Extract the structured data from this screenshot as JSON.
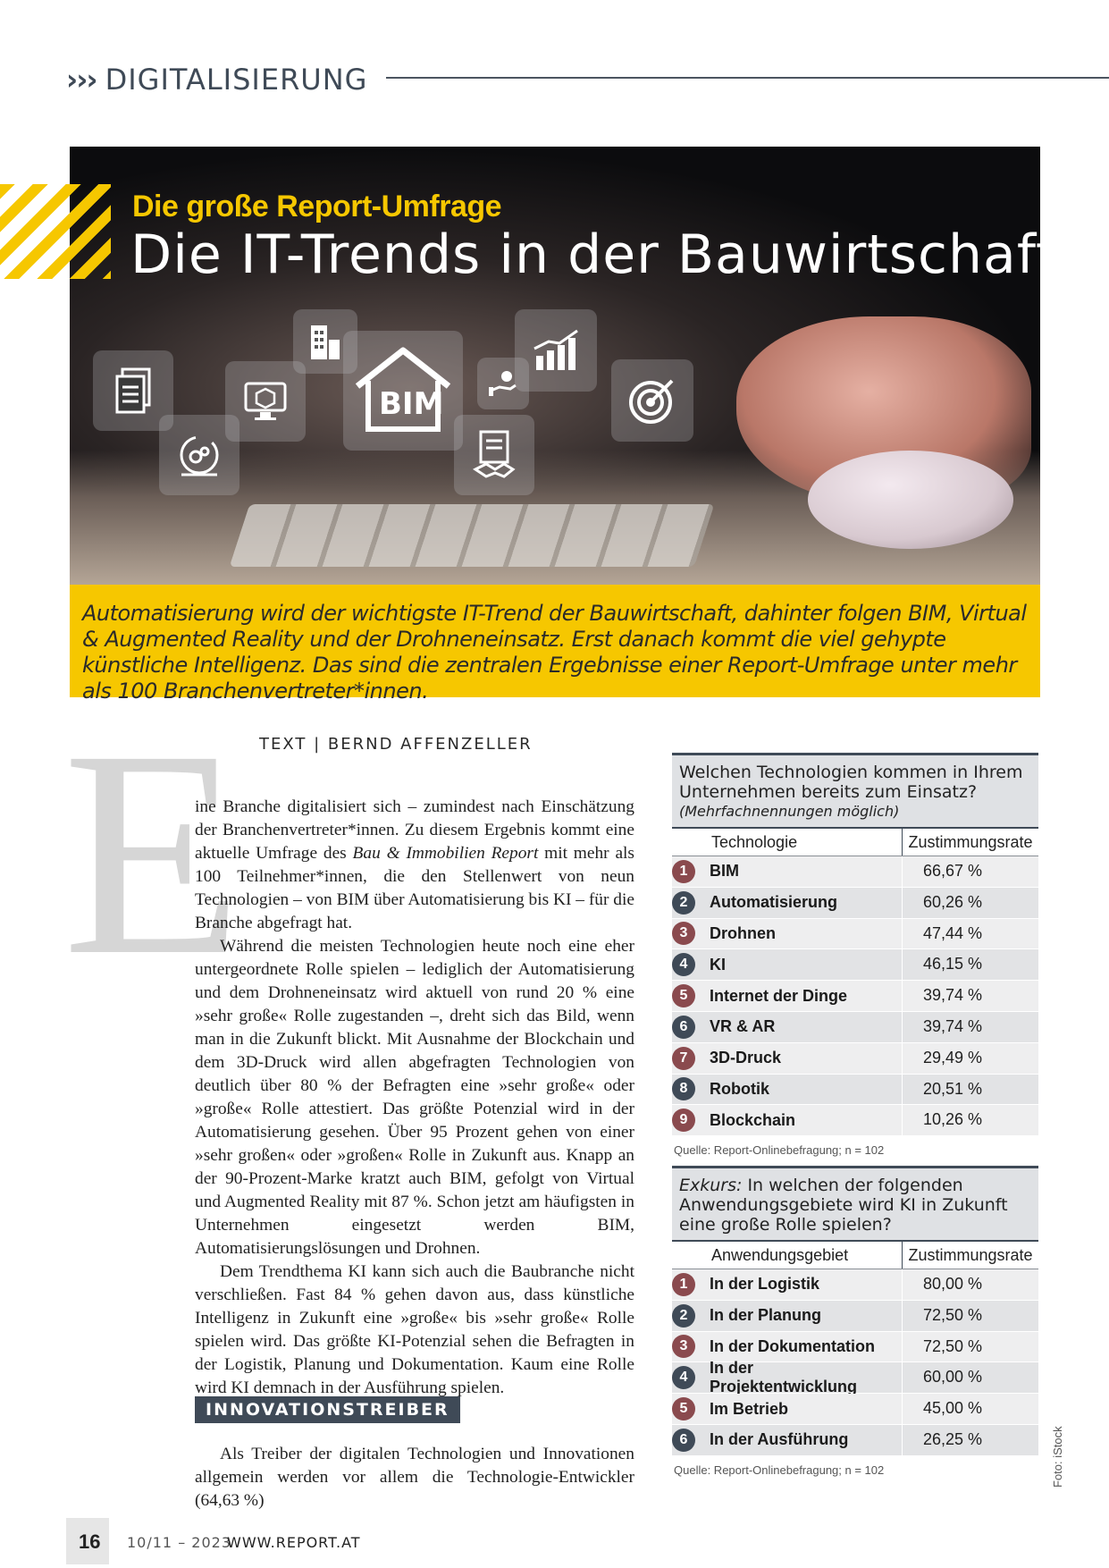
{
  "header": {
    "chevrons": "›››",
    "section": "DIGITALISIERUNG"
  },
  "hero": {
    "kicker": "Die große Report-Umfrage",
    "title": "Die IT-Trends in der Bauwirtschaft",
    "bim_label": "BIM",
    "kicker_color": "#f6c700"
  },
  "lead": "Automatisierung wird der wichtigste IT-Trend der Bauwirtschaft, dahinter folgen BIM, Virtual & Augmented Reality und der Drohneneinsatz. Erst danach kommt die viel gehypte künstliche Intelligenz. Das sind die zentralen Ergebnisse einer Report-Umfrage unter mehr als 100 Branchenvertreter*innen.",
  "article": {
    "dropcap": "E",
    "byline": "TEXT | BERND AFFENZELLER",
    "p1_start": "ine Branche digitalisiert sich – zumindest nach Einschätzung der Branchenvertreter*innen. Zu diesem Ergebnis kommt eine aktuelle Umfrage des ",
    "p1_italic": "Bau & Immobilien Report",
    "p1_end": " mit mehr als 100 Teilnehmer*innen, die den Stellenwert von neun Technologien – von BIM über Automatisierung bis KI – für die Branche abgefragt hat.",
    "p2": "Während die meisten Technologien heute noch eine eher untergeordnete Rolle spielen – lediglich der Automatisierung und dem Drohneneinsatz wird aktuell von rund 20 % eine »sehr große« Rolle zugestanden –, dreht sich das Bild, wenn man in die Zukunft blickt. Mit Ausnahme der Blockchain und dem 3D-Druck wird allen abgefragten Technologien von deutlich über 80 % der Befragten eine »sehr große« oder »große« Rolle attestiert. Das größte Potenzial wird in der Automatisierung gesehen. Über 95 Prozent gehen von einer »sehr großen« oder »großen« Rolle in Zukunft aus. Knapp an der 90-Prozent-Marke kratzt auch BIM, gefolgt von Virtual und Augmented Reality mit 87 %. Schon jetzt am häufigsten in Unternehmen eingesetzt werden BIM, Automatisierungslösungen und Drohnen.",
    "p3": "Dem Trendthema KI kann sich auch die Baubranche nicht verschließen. Fast 84 % gehen davon aus, dass künstliche Intelligenz in Zukunft eine »große« bis »sehr große« Rolle spielen wird. Das größte KI-Potenzial sehen die Befragten in der Logistik, Planung und Dokumentation. Kaum eine Rolle wird KI demnach in der Ausführung spielen.",
    "subhead": "INNOVATIONSTREIBER",
    "p4": "Als Treiber der digitalen Technologien und Innovationen allgemein werden vor allem die Technologie-Entwickler (64,63 %)"
  },
  "table1": {
    "question": "Welchen Technologien kommen in Ihrem Unternehmen bereits zum Einsatz?",
    "note": "(Mehrfachnennungen möglich)",
    "col1": "Technologie",
    "col2": "Zustimmungsrate",
    "rows": [
      {
        "n": "1",
        "label": "BIM",
        "value": "66,67 %",
        "color": "#8a4a4e"
      },
      {
        "n": "2",
        "label": "Automatisierung",
        "value": "60,26 %",
        "color": "#3f4a57"
      },
      {
        "n": "3",
        "label": "Drohnen",
        "value": "47,44 %",
        "color": "#8a4a4e"
      },
      {
        "n": "4",
        "label": "KI",
        "value": "46,15 %",
        "color": "#3f4a57"
      },
      {
        "n": "5",
        "label": "Internet der Dinge",
        "value": "39,74 %",
        "color": "#8a4a4e"
      },
      {
        "n": "6",
        "label": "VR & AR",
        "value": "39,74 %",
        "color": "#3f4a57"
      },
      {
        "n": "7",
        "label": "3D-Druck",
        "value": "29,49 %",
        "color": "#8a4a4e"
      },
      {
        "n": "8",
        "label": "Robotik",
        "value": "20,51 %",
        "color": "#3f4a57"
      },
      {
        "n": "9",
        "label": "Blockchain",
        "value": "10,26 %",
        "color": "#8a4a4e"
      }
    ],
    "source": "Quelle: Report-Onlinebefragung; n = 102"
  },
  "table2": {
    "question_italic": "Exkurs:",
    "question": " In welchen der folgenden Anwendungsgebiete wird KI in Zukunft eine große Rolle spielen?",
    "col1": "Anwendungsgebiet",
    "col2": "Zustimmungsrate",
    "rows": [
      {
        "n": "1",
        "label": "In der Logistik",
        "value": "80,00 %",
        "color": "#8a4a4e"
      },
      {
        "n": "2",
        "label": "In der Planung",
        "value": "72,50 %",
        "color": "#3f4a57"
      },
      {
        "n": "3",
        "label": "In der Dokumentation",
        "value": "72,50 %",
        "color": "#8a4a4e"
      },
      {
        "n": "4",
        "label": "In der Projektentwicklung",
        "value": "60,00 %",
        "color": "#3f4a57"
      },
      {
        "n": "5",
        "label": "Im Betrieb",
        "value": "45,00 %",
        "color": "#8a4a4e"
      },
      {
        "n": "6",
        "label": "In der Ausführung",
        "value": "26,25 %",
        "color": "#3f4a57"
      }
    ],
    "source": "Quelle: Report-Onlinebefragung; n = 102"
  },
  "footer": {
    "page": "16",
    "issue": "10/11 – 2023",
    "url": "WWW.REPORT.AT",
    "credit": "Foto: iStock"
  }
}
